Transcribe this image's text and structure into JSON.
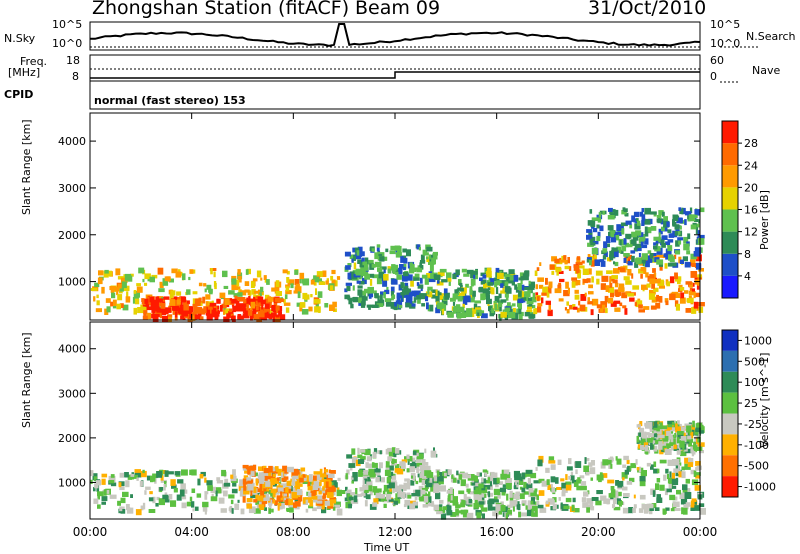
{
  "header": {
    "station": "Zhongshan Station (fitACF)",
    "beam": "Beam 09",
    "date": "31/Oct/2010"
  },
  "top_panel": {
    "left_label": "N.Sky",
    "right_label": "N.Search",
    "left_ticks": [
      "10^5",
      "10^0"
    ],
    "right_ticks": [
      "10^5",
      "10^0"
    ]
  },
  "freq_panel": {
    "left_label_1": "Freq.",
    "left_label_2": "[MHz]",
    "left_ticks": [
      "18",
      "8"
    ],
    "right_label": "Nave",
    "right_ticks": [
      "60",
      "0"
    ],
    "cpid_label": "CPID",
    "cpid_text": "normal (fast stereo) 153"
  },
  "axes": {
    "x_ticks": [
      "00:00",
      "04:00",
      "08:00",
      "12:00",
      "16:00",
      "20:00",
      "00:00"
    ],
    "x_label": "Time UT",
    "y_ticks": [
      "1000",
      "2000",
      "3000",
      "4000"
    ],
    "y_label": "Slant Range [km]"
  },
  "power_colorbar": {
    "label": "Power [dB]",
    "ticks": [
      "4",
      "8",
      "12",
      "16",
      "20",
      "24",
      "28"
    ],
    "colors": [
      "#1a1aff",
      "#1e4fc8",
      "#2e8b57",
      "#5fc04f",
      "#e6d200",
      "#ff9a00",
      "#ff6a00",
      "#ff1a00"
    ]
  },
  "velocity_colorbar": {
    "label": "Velocity [m s^-1]",
    "ticks": [
      "1000",
      "500",
      "100",
      "25",
      "-25",
      "-100",
      "-500",
      "-1000"
    ],
    "colors": [
      "#1030c0",
      "#2c6fb0",
      "#2e8b57",
      "#5cc040",
      "#c8c8c0",
      "#ffb000",
      "#ff7000",
      "#ff1a00"
    ]
  },
  "chart_data": {
    "type": "heatmap",
    "title": "Zhongshan Station (fitACF) Beam 09 31/Oct/2010",
    "xlabel": "Time UT",
    "ylabel": "Slant Range [km]",
    "xlim": [
      "00:00",
      "24:00"
    ],
    "ylim": [
      180,
      4600
    ],
    "panels": [
      {
        "name": "Power [dB]",
        "clim": [
          0,
          30
        ],
        "regions": [
          {
            "t": [
              0.0,
              9.8
            ],
            "range_km": [
              400,
              1300
            ],
            "value_db": 18
          },
          {
            "t": [
              2.0,
              7.5
            ],
            "range_km": [
              250,
              700
            ],
            "value_db": 27
          },
          {
            "t": [
              10.0,
              13.5
            ],
            "range_km": [
              500,
              1800
            ],
            "value_db": 10
          },
          {
            "t": [
              13.5,
              17.5
            ],
            "range_km": [
              300,
              1300
            ],
            "value_db": 12
          },
          {
            "t": [
              17.5,
              24.0
            ],
            "range_km": [
              400,
              1600
            ],
            "value_db": 22
          },
          {
            "t": [
              19.5,
              24.0
            ],
            "range_km": [
              1400,
              2600
            ],
            "value_db": 9
          }
        ]
      },
      {
        "name": "Velocity [m s^-1]",
        "clim": [
          -1000,
          1000
        ],
        "regions": [
          {
            "t": [
              0.0,
              9.8
            ],
            "range_km": [
              400,
              1300
            ],
            "value_ms": 50
          },
          {
            "t": [
              6.0,
              9.5
            ],
            "range_km": [
              500,
              1400
            ],
            "value_ms": -400
          },
          {
            "t": [
              10.0,
              13.5
            ],
            "range_km": [
              500,
              1800
            ],
            "value_ms": 80
          },
          {
            "t": [
              13.5,
              17.5
            ],
            "range_km": [
              300,
              1300
            ],
            "value_ms": 100
          },
          {
            "t": [
              17.5,
              24.0
            ],
            "range_km": [
              400,
              1600
            ],
            "value_ms": 60
          },
          {
            "t": [
              21.5,
              24.0
            ],
            "range_km": [
              1700,
              2400
            ],
            "value_ms": 0
          }
        ]
      }
    ]
  }
}
